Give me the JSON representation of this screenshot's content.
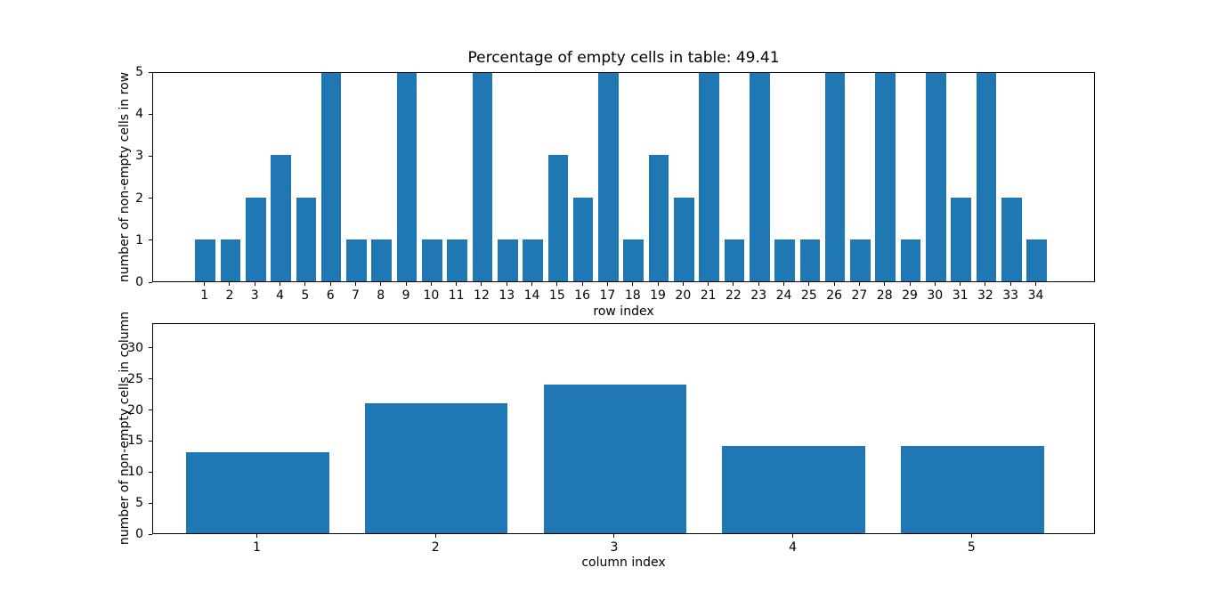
{
  "figure": {
    "background": "#ffffff",
    "text_color": "#000000"
  },
  "chart_data": [
    {
      "type": "bar",
      "title": "Percentage of empty cells in table: 49.41",
      "xlabel": "row index",
      "ylabel": "number of non-empty cells in row",
      "categories": [
        1,
        2,
        3,
        4,
        5,
        6,
        7,
        8,
        9,
        10,
        11,
        12,
        13,
        14,
        15,
        16,
        17,
        18,
        19,
        20,
        21,
        22,
        23,
        24,
        25,
        26,
        27,
        28,
        29,
        30,
        31,
        32,
        33,
        34
      ],
      "values": [
        1,
        1,
        2,
        3,
        2,
        5,
        1,
        1,
        5,
        1,
        1,
        5,
        1,
        1,
        3,
        2,
        5,
        1,
        3,
        2,
        5,
        1,
        5,
        1,
        1,
        5,
        1,
        5,
        1,
        5,
        2,
        5,
        2,
        1
      ],
      "ylim": [
        0,
        5
      ],
      "yticks": [
        0,
        1,
        2,
        3,
        4,
        5
      ],
      "bar_color": "#1f77b4",
      "grid": false,
      "legend": null
    },
    {
      "type": "bar",
      "title": "",
      "xlabel": "column index",
      "ylabel": "number of non-empty cells in column",
      "categories": [
        1,
        2,
        3,
        4,
        5
      ],
      "values": [
        13,
        21,
        24,
        14,
        14
      ],
      "ylim": [
        0,
        34
      ],
      "yticks": [
        0,
        5,
        10,
        15,
        20,
        25,
        30
      ],
      "bar_color": "#1f77b4",
      "grid": false,
      "legend": null
    }
  ]
}
